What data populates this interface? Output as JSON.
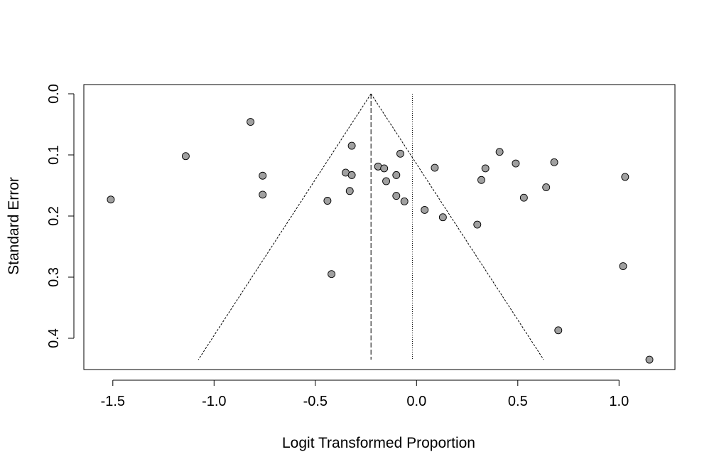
{
  "chart_data": {
    "type": "scatter",
    "title": "",
    "xlabel": "Logit Transformed Proportion",
    "ylabel": "Standard Error",
    "xlim": [
      -1.65,
      1.28
    ],
    "ylim": [
      0,
      0.452
    ],
    "y_reversed": true,
    "x_ticks": [
      -1.5,
      -1.0,
      -0.5,
      0.0,
      0.5,
      1.0
    ],
    "x_tick_labels": [
      "-1.5",
      "-1.0",
      "-0.5",
      "0.0",
      "0.5",
      "1.0"
    ],
    "y_ticks": [
      0.0,
      0.1,
      0.2,
      0.3,
      0.4
    ],
    "y_tick_labels": [
      "0.0",
      "0.1",
      "0.2",
      "0.3",
      "0.4"
    ],
    "pooled_estimate": -0.225,
    "reference_line": -0.02,
    "funnel_max_se": 0.435,
    "point_color": "#a0a0a0",
    "points": [
      {
        "x": -1.51,
        "y": 0.173
      },
      {
        "x": -1.14,
        "y": 0.102
      },
      {
        "x": -0.82,
        "y": 0.046
      },
      {
        "x": -0.76,
        "y": 0.134
      },
      {
        "x": -0.76,
        "y": 0.165
      },
      {
        "x": -0.44,
        "y": 0.175
      },
      {
        "x": -0.42,
        "y": 0.295
      },
      {
        "x": -0.35,
        "y": 0.129
      },
      {
        "x": -0.33,
        "y": 0.159
      },
      {
        "x": -0.32,
        "y": 0.085
      },
      {
        "x": -0.32,
        "y": 0.133
      },
      {
        "x": -0.19,
        "y": 0.119
      },
      {
        "x": -0.16,
        "y": 0.122
      },
      {
        "x": -0.15,
        "y": 0.143
      },
      {
        "x": -0.1,
        "y": 0.133
      },
      {
        "x": -0.1,
        "y": 0.167
      },
      {
        "x": -0.08,
        "y": 0.098
      },
      {
        "x": -0.06,
        "y": 0.176
      },
      {
        "x": 0.04,
        "y": 0.19
      },
      {
        "x": 0.09,
        "y": 0.121
      },
      {
        "x": 0.13,
        "y": 0.202
      },
      {
        "x": 0.3,
        "y": 0.214
      },
      {
        "x": 0.32,
        "y": 0.141
      },
      {
        "x": 0.34,
        "y": 0.122
      },
      {
        "x": 0.41,
        "y": 0.095
      },
      {
        "x": 0.49,
        "y": 0.114
      },
      {
        "x": 0.53,
        "y": 0.17
      },
      {
        "x": 0.64,
        "y": 0.153
      },
      {
        "x": 0.68,
        "y": 0.112
      },
      {
        "x": 0.7,
        "y": 0.387
      },
      {
        "x": 1.02,
        "y": 0.282
      },
      {
        "x": 1.03,
        "y": 0.136
      },
      {
        "x": 1.15,
        "y": 0.435
      }
    ]
  }
}
